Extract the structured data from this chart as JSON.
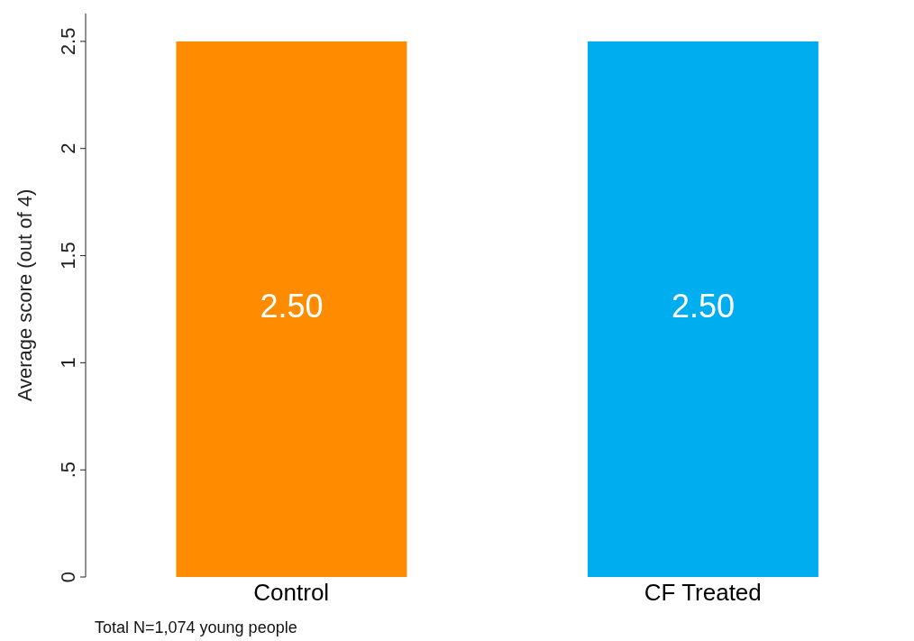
{
  "chart_data": {
    "type": "bar",
    "ylabel": "Average score (out of 4)",
    "categories": [
      "Control",
      "CF Treated"
    ],
    "values": [
      2.5,
      2.5
    ],
    "colors": [
      "#ff8c00",
      "#00aeef"
    ],
    "value_labels": [
      "2.50",
      "2.50"
    ],
    "ylim": [
      0,
      2.63
    ],
    "yticks": [
      0,
      {
        "value": 0.5,
        "label": ".5"
      },
      1,
      1.5,
      2,
      2.5
    ],
    "grid": false,
    "annotations": [
      "Total N=1,074 young people"
    ]
  }
}
